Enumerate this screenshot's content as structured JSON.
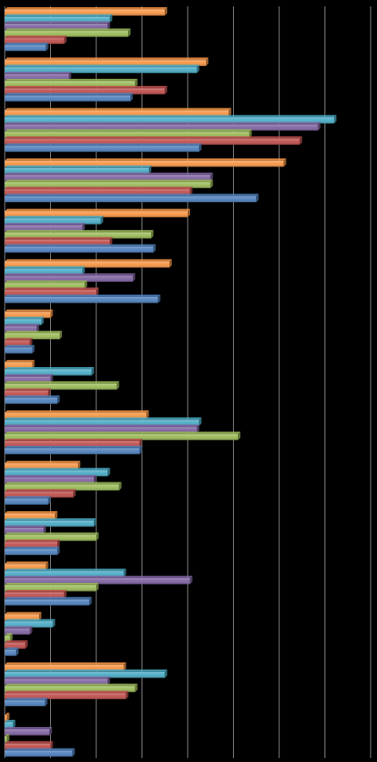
{
  "chart_data": {
    "type": "bar",
    "orientation": "horizontal",
    "style": "3d-shaded bars",
    "background": "#000000",
    "grid": true,
    "gridline_color": "#8c8c8c",
    "legend": "none",
    "title": "",
    "xlabel": "",
    "ylabel": "",
    "xlim": [
      0,
      8
    ],
    "gridlines_at": [
      1,
      2,
      3,
      4,
      5,
      6,
      7,
      8
    ],
    "categories": [
      "",
      "",
      "",
      "",
      "",
      "",
      "",
      "",
      "",
      "",
      "",
      "",
      "",
      "",
      ""
    ],
    "series_order_top_to_bottom": [
      "s1",
      "s2",
      "s3",
      "s4",
      "s5",
      "s6"
    ],
    "series": [
      {
        "id": "s1",
        "color": "#f79646",
        "values": [
          3.5,
          4.4,
          4.9,
          6.1,
          4.0,
          3.6,
          1.0,
          0.6,
          3.1,
          1.6,
          1.1,
          0.9,
          0.75,
          2.6,
          0.05
        ]
      },
      {
        "id": "s2",
        "color": "#4bacc6",
        "values": [
          2.3,
          4.2,
          7.2,
          3.15,
          2.1,
          1.7,
          0.8,
          1.9,
          4.25,
          2.25,
          1.95,
          2.6,
          1.05,
          3.5,
          0.18
        ]
      },
      {
        "id": "s3",
        "color": "#8064a2",
        "values": [
          2.25,
          1.4,
          6.85,
          4.5,
          1.7,
          2.8,
          0.7,
          1.0,
          4.2,
          1.95,
          0.85,
          4.05,
          0.55,
          2.25,
          0.98
        ]
      },
      {
        "id": "s4",
        "color": "#9bbb59",
        "values": [
          2.7,
          2.85,
          5.35,
          4.5,
          3.2,
          1.75,
          1.2,
          2.45,
          5.1,
          2.5,
          2.0,
          2.0,
          0.12,
          2.85,
          0.05
        ]
      },
      {
        "id": "s5",
        "color": "#c0504d",
        "values": [
          1.3,
          3.5,
          6.45,
          4.05,
          2.3,
          2.0,
          0.55,
          0.95,
          2.95,
          1.5,
          1.15,
          1.3,
          0.45,
          2.65,
          1.0
        ]
      },
      {
        "id": "s6",
        "color": "#4f81bd",
        "values": [
          0.9,
          2.75,
          4.25,
          5.5,
          3.25,
          3.35,
          0.6,
          1.15,
          2.95,
          0.95,
          1.15,
          1.85,
          0.25,
          0.88,
          1.48
        ]
      }
    ]
  }
}
